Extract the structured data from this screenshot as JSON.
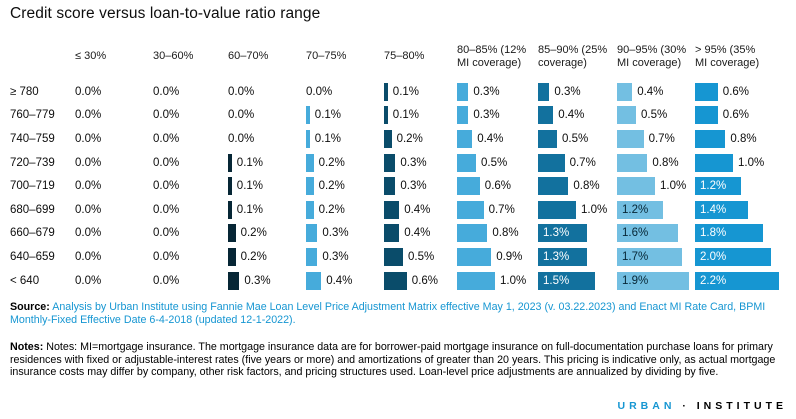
{
  "title": "Credit score versus loan-to-value ratio range",
  "chart_data": {
    "type": "bar",
    "orientation": "horizontal-bars-in-table",
    "value_unit": "percent",
    "row_dimension": "credit score",
    "column_dimension": "loan-to-value ratio range",
    "columns": [
      {
        "label": "≤ 30%",
        "bar_color": null
      },
      {
        "label": "30–60%",
        "bar_color": null
      },
      {
        "label": "60–70%",
        "bar_color": "#062635"
      },
      {
        "label": "70–75%",
        "bar_color": "#46ABDB"
      },
      {
        "label": "75–80%",
        "bar_color": "#0A4C6A"
      },
      {
        "label": "80–85% (12% MI coverage)",
        "bar_color": "#46ABDB"
      },
      {
        "label": "85–90% (25% coverage)",
        "bar_color": "#12719E"
      },
      {
        "label": "90–95% (30% MI coverage)",
        "bar_color": "#73BFE2"
      },
      {
        "label": "> 95% (35% MI coverage)",
        "bar_color": "#1696D2"
      }
    ],
    "rows": [
      {
        "label": "≥ 780",
        "values": [
          0.0,
          0.0,
          0.0,
          0.0,
          0.1,
          0.3,
          0.3,
          0.4,
          0.6
        ]
      },
      {
        "label": "760–779",
        "values": [
          0.0,
          0.0,
          0.0,
          0.1,
          0.1,
          0.3,
          0.4,
          0.5,
          0.6
        ]
      },
      {
        "label": "740–759",
        "values": [
          0.0,
          0.0,
          0.0,
          0.1,
          0.2,
          0.4,
          0.5,
          0.7,
          0.8
        ]
      },
      {
        "label": "720–739",
        "values": [
          0.0,
          0.0,
          0.1,
          0.2,
          0.3,
          0.5,
          0.7,
          0.8,
          1.0
        ]
      },
      {
        "label": "700–719",
        "values": [
          0.0,
          0.0,
          0.1,
          0.2,
          0.3,
          0.6,
          0.8,
          1.0,
          1.2
        ]
      },
      {
        "label": "680–699",
        "values": [
          0.0,
          0.0,
          0.1,
          0.2,
          0.4,
          0.7,
          1.0,
          1.2,
          1.4
        ]
      },
      {
        "label": "660–679",
        "values": [
          0.0,
          0.0,
          0.2,
          0.3,
          0.4,
          0.8,
          1.3,
          1.6,
          1.8
        ]
      },
      {
        "label": "640–659",
        "values": [
          0.0,
          0.0,
          0.2,
          0.3,
          0.5,
          0.9,
          1.3,
          1.7,
          2.0
        ]
      },
      {
        "label": "< 640",
        "values": [
          0.0,
          0.0,
          0.3,
          0.4,
          0.6,
          1.0,
          1.5,
          1.9,
          2.2
        ]
      }
    ],
    "label_inside_threshold": 1.2,
    "light_bar_colors": [
      "#73BFE2",
      "#46ABDB"
    ],
    "inside_label_on_dark": "#ffffff",
    "inside_label_on_light": "#062635",
    "zero_label": "0.0%"
  },
  "source": {
    "label": "Source:",
    "text": "Analysis by Urban Institute using Fannie Mae Loan Level Price Adjustment Matrix effective May 1, 2023 (v. 03.22.2023) and Enact MI Rate Card, BPMI Monthly-Fixed Effective Date 6-4-2018 (updated 12-1-2022).",
    "link_color": "#1696D2"
  },
  "notes": {
    "label": "Notes:",
    "text": "Notes: MI=mortgage insurance. The mortgage insurance data are for borrower-paid mortgage insurance on full-documentation purchase loans for primary residences with fixed or adjustable-interest rates (five years or more) and amortizations of greater than 20 years. This pricing is indicative only, as actual mortgage insurance costs may differ by company, other risk factors, and pricing structures used. Loan-level price adjustments are annualized by dividing by five."
  },
  "logo": {
    "part1": "URBAN",
    "separator": "·",
    "part2": "INSTITUTE",
    "urban_color": "#1696D2",
    "institute_color": "#000000"
  }
}
